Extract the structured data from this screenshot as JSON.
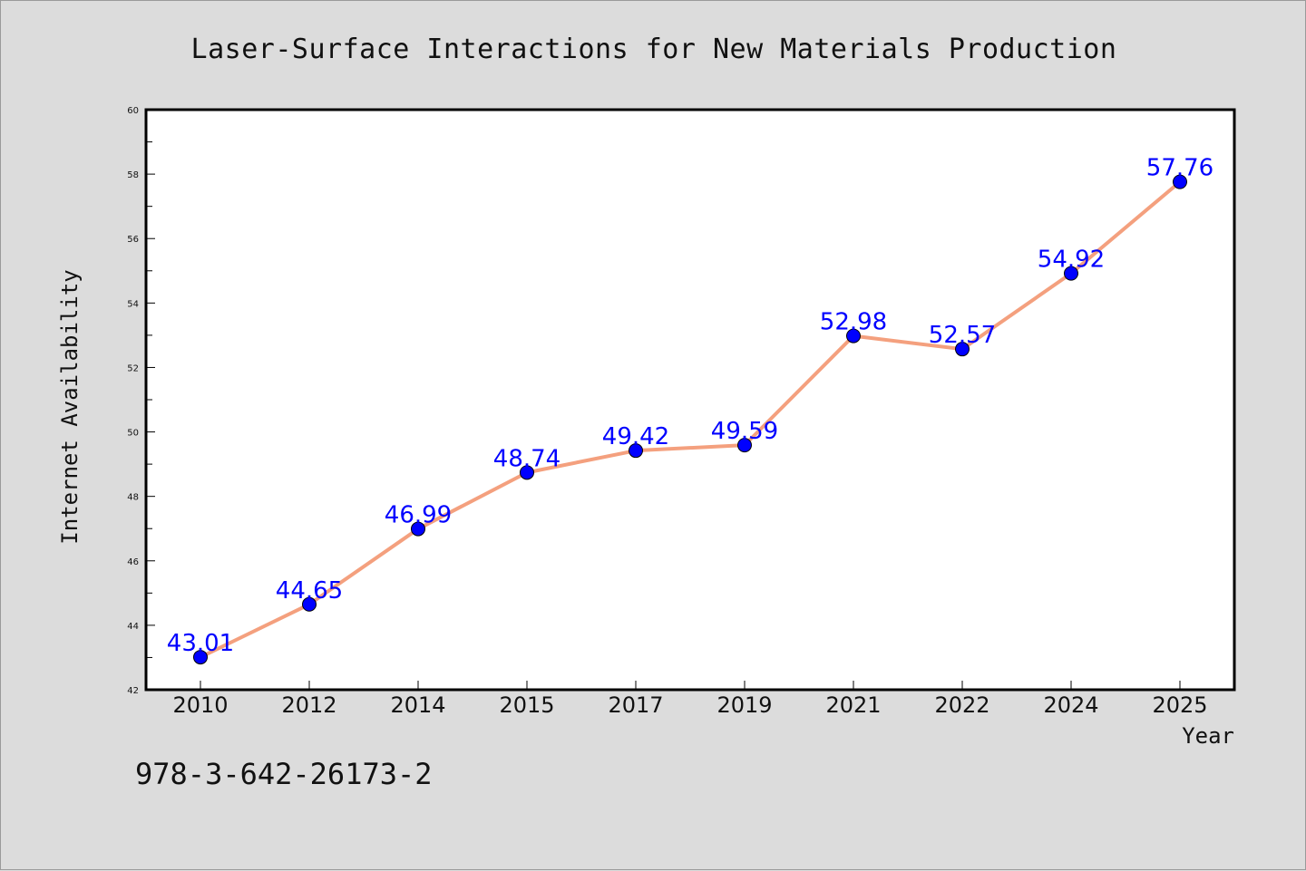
{
  "chart_data": {
    "type": "line",
    "title": "Laser-Surface Interactions for New Materials Production",
    "xlabel": "Year",
    "ylabel": "Internet Availability",
    "categories": [
      "2010",
      "2012",
      "2014",
      "2015",
      "2017",
      "2019",
      "2021",
      "2022",
      "2024",
      "2025"
    ],
    "series": [
      {
        "values": [
          43.01,
          44.65,
          46.99,
          48.74,
          49.42,
          49.59,
          52.98,
          52.57,
          54.92,
          57.76
        ],
        "labels": [
          "43.01",
          "44.65",
          "46.99",
          "48.74",
          "49.42",
          "49.59",
          "52.98",
          "52.57",
          "54.92",
          "57.76"
        ],
        "line_color": "#f4a07e",
        "marker_color": "#0000ff"
      }
    ],
    "ylim": [
      42,
      60
    ],
    "yticks": [
      "42",
      "44",
      "46",
      "48",
      "50",
      "52",
      "54",
      "56",
      "58",
      "60"
    ],
    "grid": false,
    "legend": "none"
  },
  "footer": {
    "text": "978-3-642-26173-2"
  },
  "colors": {
    "background": "#dcdcdc",
    "plot_background": "#ffffff",
    "line": "#f4a07e",
    "marker": "#0000ff",
    "data_label": "#0000ff"
  }
}
